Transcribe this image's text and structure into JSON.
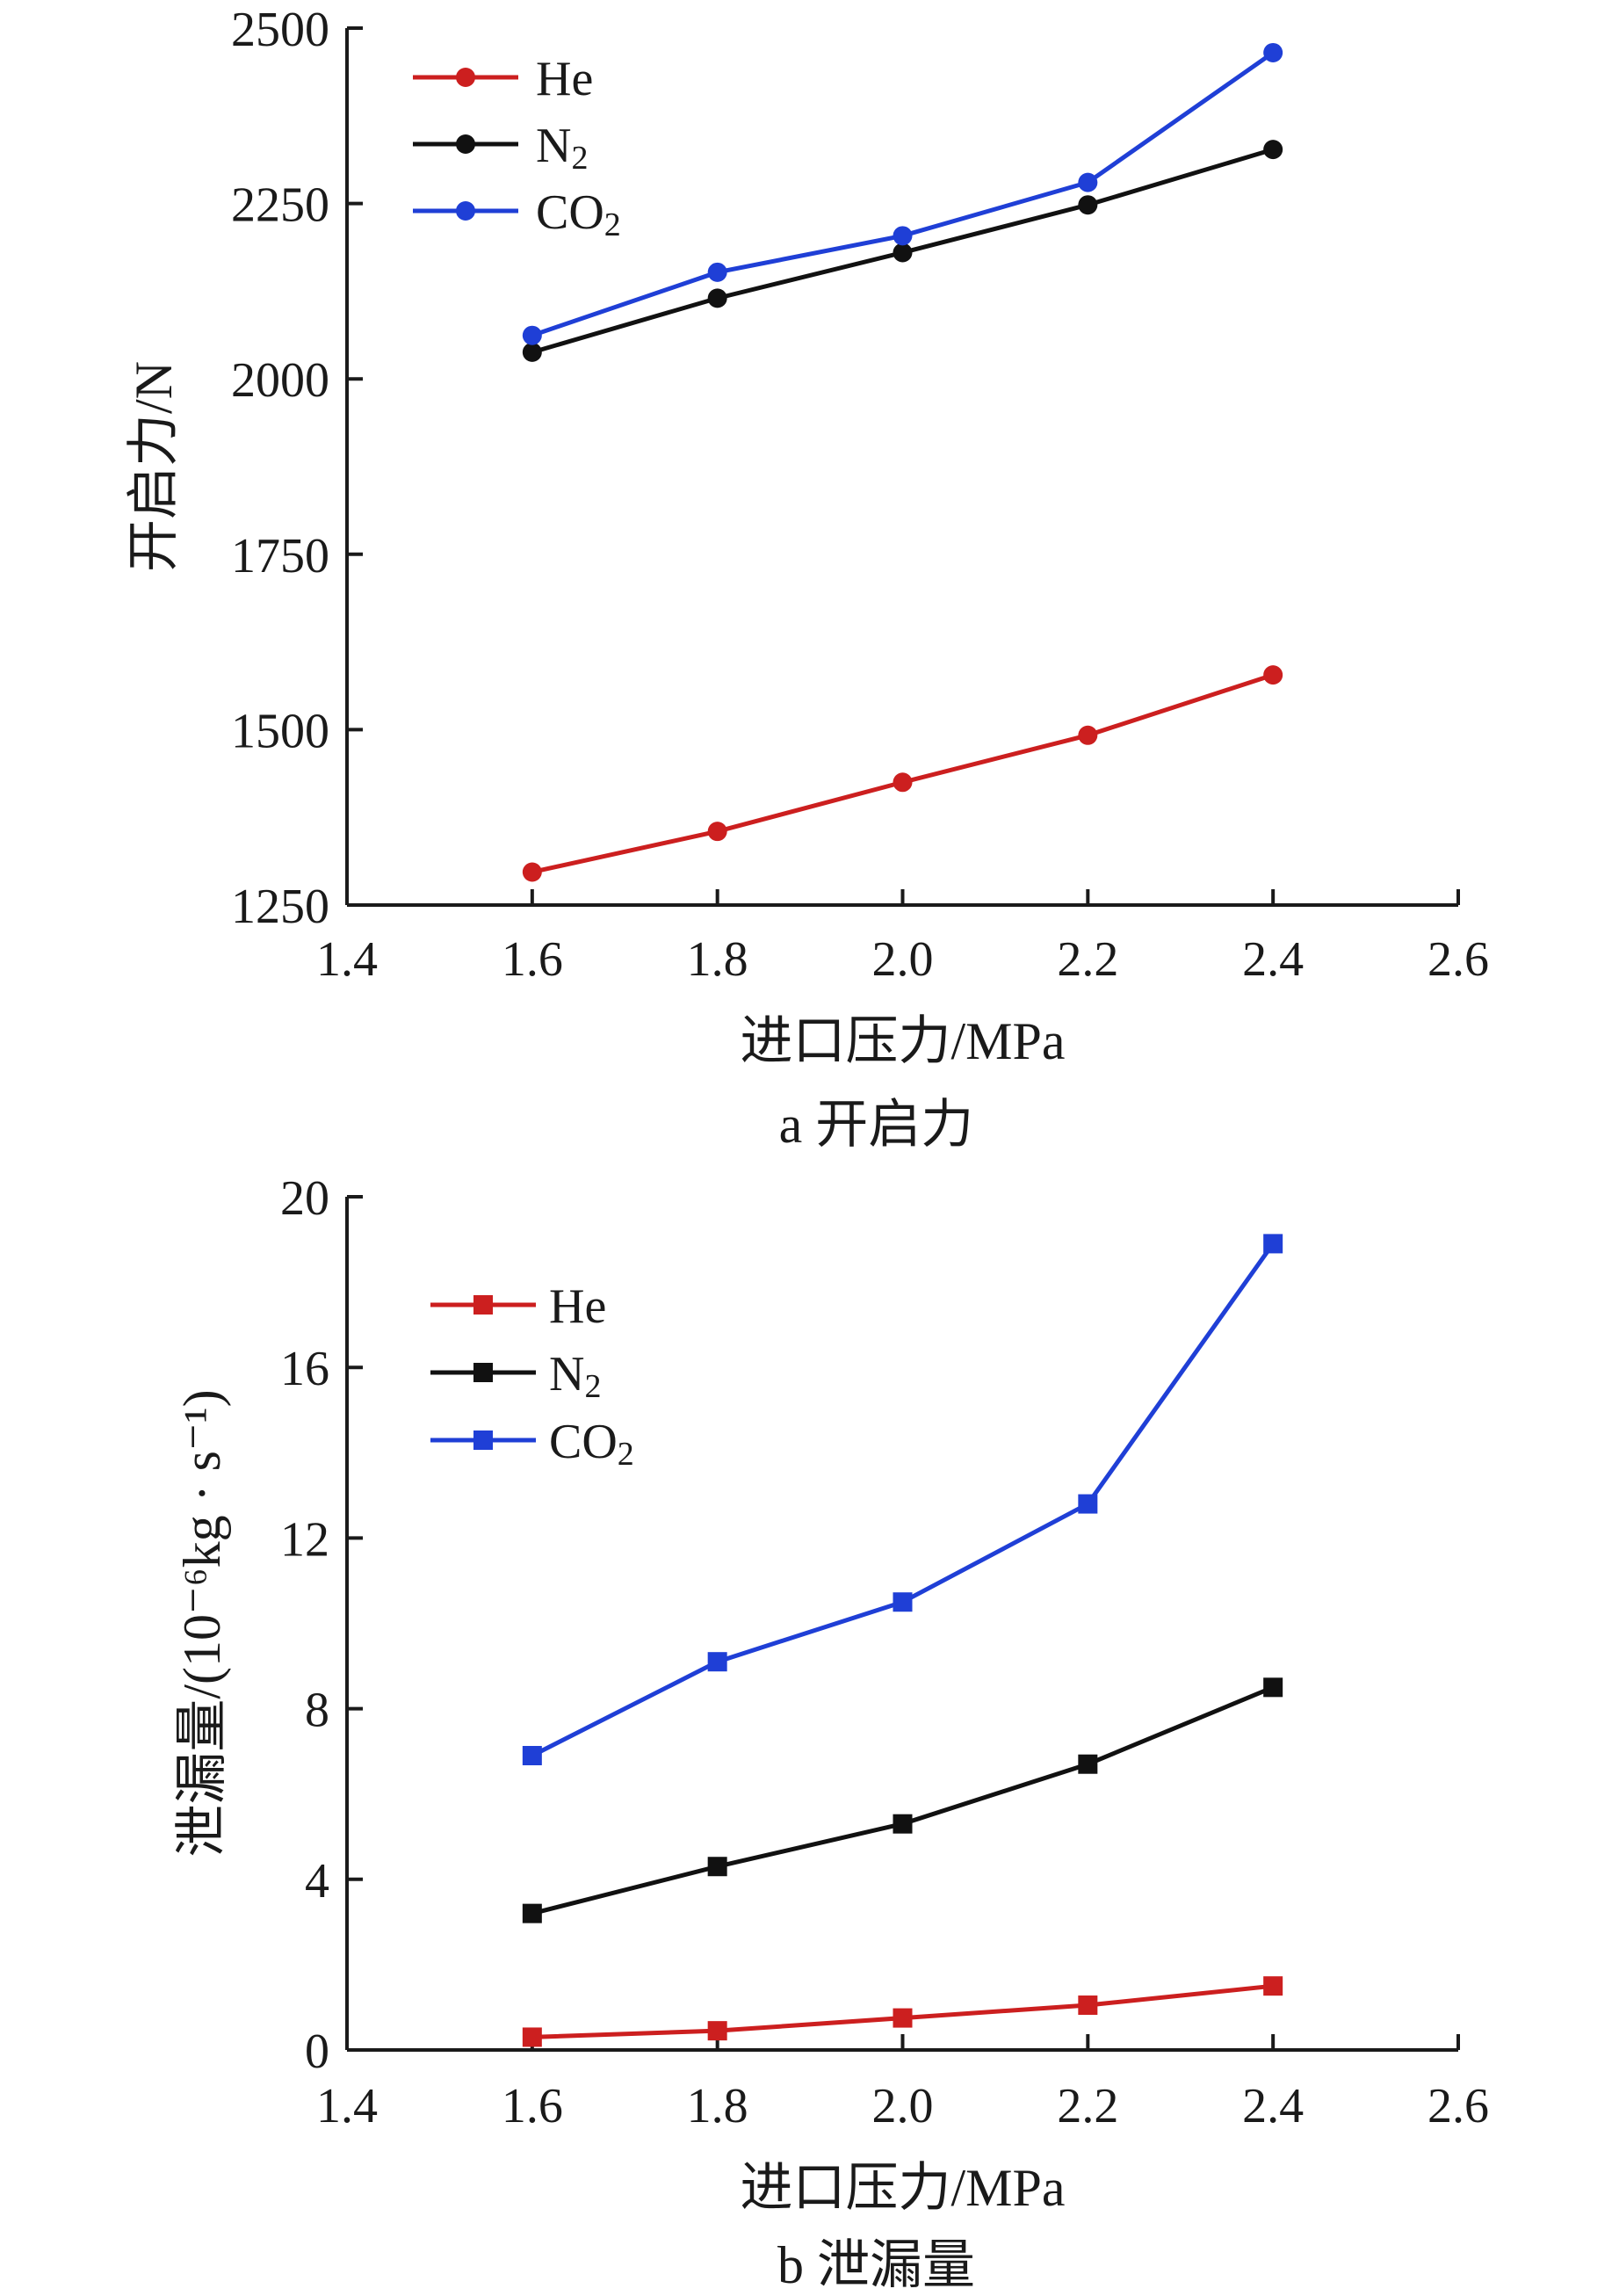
{
  "chart_data": [
    {
      "type": "line",
      "caption": "a  开启力",
      "xlabel": "进口压力/MPa",
      "ylabel": "开启力/N",
      "xlim": [
        1.4,
        2.6
      ],
      "ylim": [
        1250,
        2500
      ],
      "xticks": [
        "1.4",
        "1.6",
        "1.8",
        "2.0",
        "2.2",
        "2.4",
        "2.6"
      ],
      "yticks": [
        "1250",
        "1500",
        "1750",
        "2000",
        "2250",
        "2500"
      ],
      "marker": "circle",
      "legend_position": "top-left",
      "x": [
        1.6,
        1.8,
        2.0,
        2.2,
        2.4
      ],
      "series": [
        {
          "name": "He",
          "name_main": "He",
          "name_sub": "",
          "color": "#cc1f1f",
          "values": [
            1297,
            1355,
            1425,
            1492,
            1578
          ]
        },
        {
          "name": "N₂",
          "name_main": "N",
          "name_sub": "2",
          "color": "#111111",
          "values": [
            2038,
            2115,
            2180,
            2248,
            2327
          ]
        },
        {
          "name": "CO₂",
          "name_main": "CO",
          "name_sub": "2",
          "color": "#1f3fd6",
          "values": [
            2062,
            2152,
            2204,
            2280,
            2465
          ]
        }
      ]
    },
    {
      "type": "line",
      "caption": "b  泄漏量",
      "xlabel": "进口压力/MPa",
      "ylabel": "泄漏量/(10⁻⁶kg · s⁻¹)",
      "xlim": [
        1.4,
        2.6
      ],
      "ylim": [
        0,
        20
      ],
      "xticks": [
        "1.4",
        "1.6",
        "1.8",
        "2.0",
        "2.2",
        "2.4",
        "2.6"
      ],
      "yticks": [
        "0",
        "4",
        "8",
        "12",
        "16",
        "20"
      ],
      "marker": "square",
      "legend_position": "top-left",
      "x": [
        1.6,
        1.8,
        2.0,
        2.2,
        2.4
      ],
      "series": [
        {
          "name": "He",
          "name_main": "He",
          "name_sub": "",
          "color": "#cc1f1f",
          "values": [
            0.3,
            0.45,
            0.75,
            1.05,
            1.5
          ]
        },
        {
          "name": "N₂",
          "name_main": "N",
          "name_sub": "2",
          "color": "#111111",
          "values": [
            3.2,
            4.3,
            5.3,
            6.7,
            8.5
          ]
        },
        {
          "name": "CO₂",
          "name_main": "CO",
          "name_sub": "2",
          "color": "#1f3fd6",
          "values": [
            6.9,
            9.1,
            10.5,
            12.8,
            18.9
          ]
        }
      ]
    }
  ]
}
